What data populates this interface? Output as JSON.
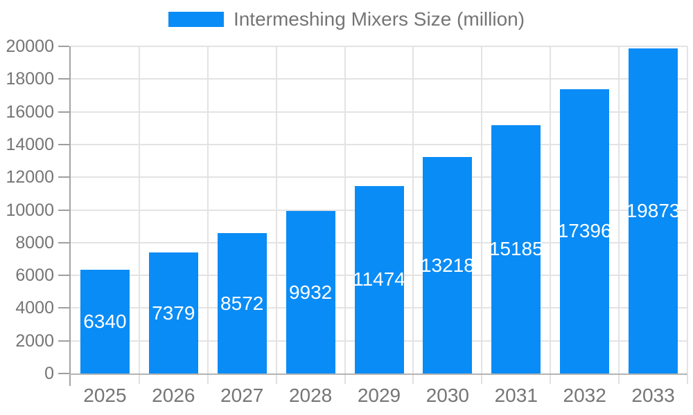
{
  "legend": {
    "label": "Intermeshing Mixers Size (million)"
  },
  "chart_data": {
    "type": "bar",
    "title": "Intermeshing Mixers Size (million)",
    "categories": [
      "2025",
      "2026",
      "2027",
      "2028",
      "2029",
      "2030",
      "2031",
      "2032",
      "2033"
    ],
    "values": [
      6340,
      7379,
      8572,
      9932,
      11474,
      13218,
      15185,
      17396,
      19873
    ],
    "xlabel": "",
    "ylabel": "",
    "ylim": [
      0,
      20000
    ],
    "ytick_step": 2000,
    "yticks": [
      0,
      2000,
      4000,
      6000,
      8000,
      10000,
      12000,
      14000,
      16000,
      18000,
      20000
    ],
    "grid": true,
    "legend_position": "top",
    "bar_color": "#0a8cf6",
    "bar_label_color": "#ffffff",
    "axis_text_color": "#757575",
    "bar_labels_inside": true
  }
}
